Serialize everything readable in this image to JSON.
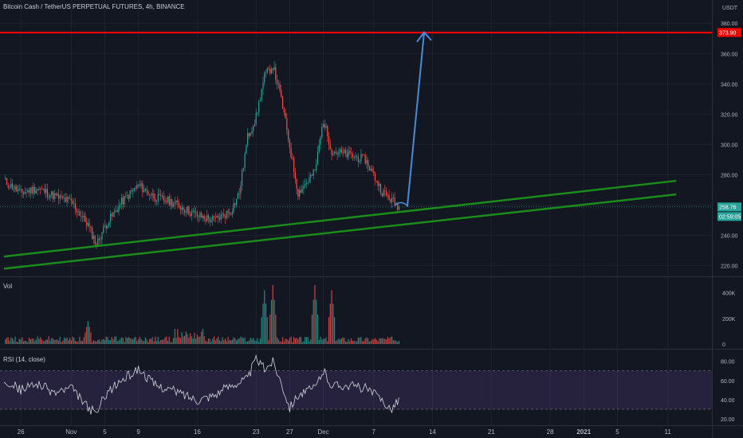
{
  "header": {
    "title": "Bitcoin Cash / TetherUS PERPETUAL FUTURES, 4h, BINANCE"
  },
  "volume_label": "Vol",
  "rsi_label": "RSI (14, close)",
  "colors": {
    "background": "#131722",
    "up": "#26a69a",
    "down": "#ef5350",
    "resistance": "#ff0000",
    "support": "#1a8c1a",
    "arrow": "#4a8ad6",
    "rsi_band": "#7e57c2"
  },
  "price_tags": {
    "currency": "USDT",
    "resistance": "373.90",
    "last": "258.76",
    "countdown": "02:59:05"
  },
  "chart_data": [
    {
      "type": "line",
      "title": "",
      "xlabel": "",
      "ylabel": "",
      "x_ticks": [
        "26",
        "Nov",
        "5",
        "9",
        "16",
        "23",
        "27",
        "Dec",
        "7",
        "14",
        "21",
        "28",
        "2021",
        "5",
        "11"
      ],
      "y_ticks": [
        220,
        240,
        260,
        280,
        300,
        320,
        340,
        360,
        380
      ],
      "ylim": [
        214,
        388
      ],
      "series": [
        {
          "x": [
            "Oct 24",
            "Oct 26",
            "Oct 28",
            "Oct 30",
            "Nov 1",
            "Nov 3",
            "Nov 4",
            "Nov 5",
            "Nov 7",
            "Nov 9",
            "Nov 11",
            "Nov 13",
            "Nov 16",
            "Nov 18",
            "Nov 20",
            "Nov 21",
            "Nov 22",
            "Nov 23",
            "Nov 24",
            "Nov 25",
            "Nov 26",
            "Nov 28",
            "Nov 30",
            "Dec 1",
            "Dec 2",
            "Dec 4",
            "Dec 6",
            "Dec 8",
            "Dec 9",
            "Dec 10"
          ],
          "values": [
            276,
            268,
            271,
            266,
            262,
            247,
            234,
            246,
            262,
            273,
            265,
            262,
            253,
            250,
            256,
            268,
            305,
            318,
            345,
            352,
            330,
            268,
            282,
            316,
            296,
            293,
            290,
            269,
            264,
            259
          ]
        }
      ],
      "annotations": [
        {
          "type": "horizontal_line",
          "y": 373.9,
          "label": "373.90"
        },
        {
          "type": "trendline",
          "from": [
            "Oct 24",
            226
          ],
          "to": [
            "Jan 12",
            276
          ]
        },
        {
          "type": "trendline",
          "from": [
            "Oct 24",
            218
          ],
          "to": [
            "Jan 12",
            267
          ]
        },
        {
          "type": "arrow",
          "from": [
            "Dec 11",
            259
          ],
          "to": [
            "Dec 13",
            374
          ]
        }
      ]
    },
    {
      "type": "bar",
      "title": "Vol",
      "y_ticks": [
        "0",
        "200K",
        "400K"
      ],
      "ylim": [
        0,
        460000
      ],
      "spikes": [
        {
          "x": "Nov 3",
          "value": 180000
        },
        {
          "x": "Nov 24",
          "value": 420000
        },
        {
          "x": "Nov 25",
          "value": 460000
        },
        {
          "x": "Nov 30",
          "value": 460000
        },
        {
          "x": "Dec 2",
          "value": 420000
        }
      ]
    },
    {
      "type": "line",
      "title": "RSI (14, close)",
      "y_ticks": [
        20,
        40,
        60,
        80
      ],
      "ylim": [
        15,
        88
      ],
      "bands": [
        30,
        70
      ],
      "x": [
        "Oct 24",
        "Oct 26",
        "Oct 28",
        "Oct 30",
        "Nov 1",
        "Nov 3",
        "Nov 4",
        "Nov 5",
        "Nov 7",
        "Nov 9",
        "Nov 11",
        "Nov 13",
        "Nov 16",
        "Nov 18",
        "Nov 20",
        "Nov 22",
        "Nov 23",
        "Nov 24",
        "Nov 25",
        "Nov 26",
        "Nov 27",
        "Nov 28",
        "Nov 30",
        "Dec 1",
        "Dec 2",
        "Dec 4",
        "Dec 6",
        "Dec 8",
        "Dec 9",
        "Dec 10"
      ],
      "values": [
        62,
        50,
        57,
        47,
        52,
        32,
        25,
        45,
        60,
        72,
        55,
        50,
        40,
        45,
        55,
        62,
        83,
        72,
        80,
        58,
        32,
        45,
        52,
        70,
        55,
        55,
        52,
        40,
        30,
        40
      ]
    }
  ]
}
